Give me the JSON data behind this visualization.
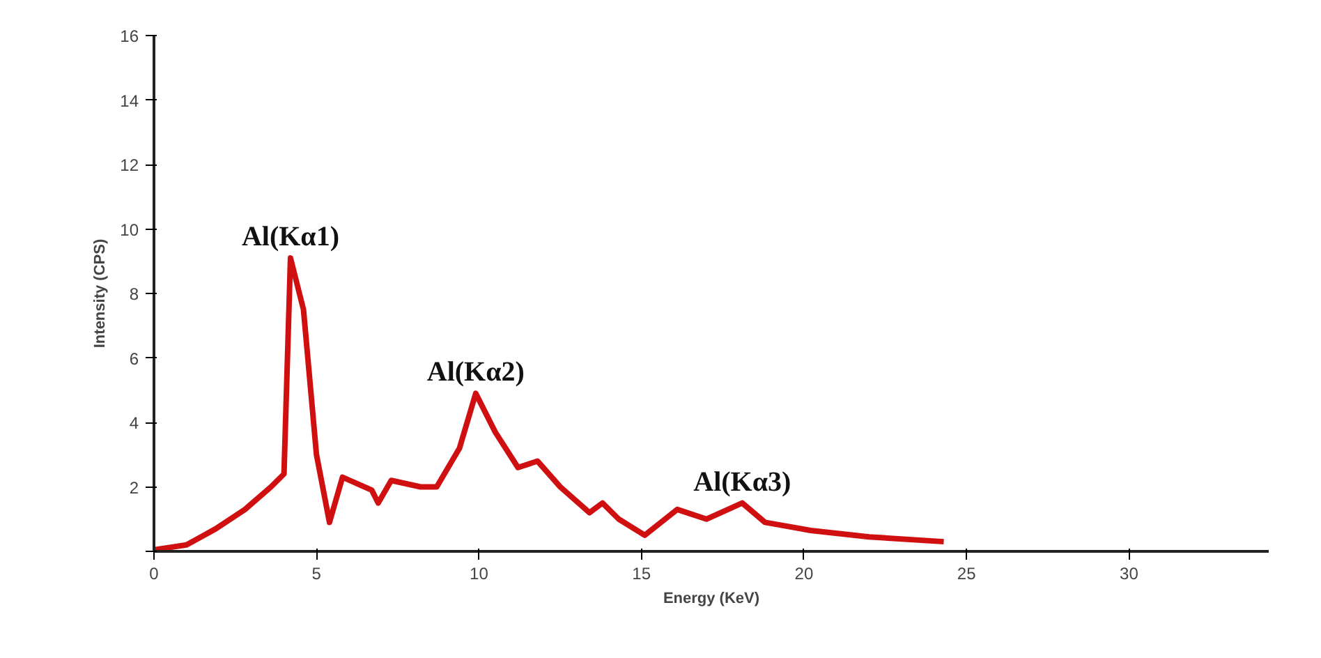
{
  "chart_data": {
    "type": "line",
    "xlabel": "Energy (KeV)",
    "ylabel": "Intensity (CPS)",
    "xlim": [
      0,
      34.3
    ],
    "ylim": [
      0,
      16
    ],
    "xticks": [
      0,
      5,
      10,
      15,
      20,
      25,
      30
    ],
    "yticks": [
      {
        "value": 0,
        "label": null
      },
      2,
      4,
      6,
      8,
      10,
      12,
      14,
      16
    ],
    "grid": false,
    "line_style": "solid",
    "marker": "none",
    "series": [
      {
        "color": "#d01010",
        "x": [
          0,
          1.0,
          1.9,
          2.8,
          3.6,
          4.0,
          4.2,
          4.6,
          5.0,
          5.4,
          5.8,
          6.7,
          6.9,
          7.3,
          8.2,
          8.7,
          9.4,
          9.9,
          10.5,
          11.2,
          11.8,
          12.5,
          13.4,
          13.8,
          14.3,
          15.1,
          16.1,
          17.0,
          18.1,
          18.8,
          20.2,
          22.0,
          24.3
        ],
        "values": [
          0.05,
          0.2,
          0.7,
          1.3,
          2.0,
          2.4,
          9.1,
          7.5,
          3.0,
          0.9,
          2.3,
          1.9,
          1.5,
          2.2,
          2.0,
          2.0,
          3.2,
          4.9,
          3.7,
          2.6,
          2.8,
          2.0,
          1.2,
          1.5,
          1.0,
          0.5,
          1.3,
          1.0,
          1.5,
          0.9,
          0.65,
          0.45,
          0.3
        ]
      }
    ],
    "annotations": [
      {
        "text": "Al(Kα1)",
        "x": 4.2,
        "y": 9.1
      },
      {
        "text": "Al(Kα2)",
        "x": 9.9,
        "y": 4.9
      },
      {
        "text": "Al(Kα3)",
        "x": 18.1,
        "y": 1.5
      }
    ]
  }
}
